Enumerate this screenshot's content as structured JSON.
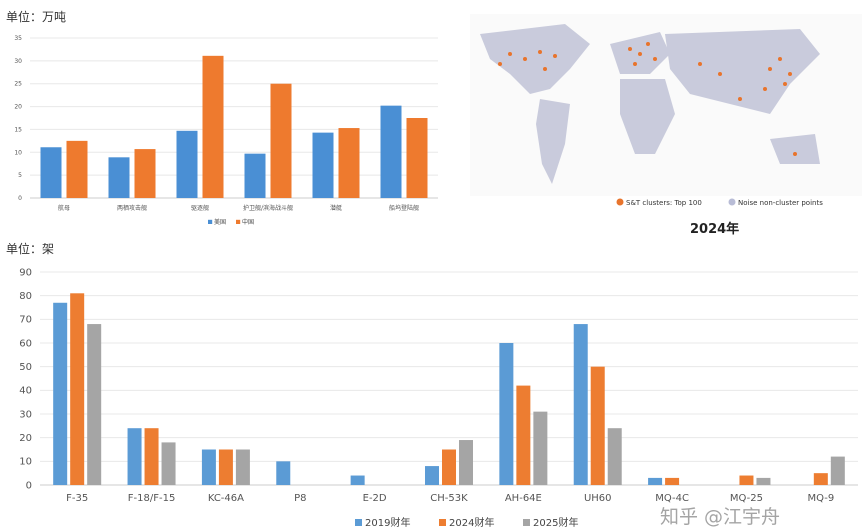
{
  "top_unit": "单位：万吨",
  "bottom_unit": "单位：架",
  "map": {
    "legend": [
      "S&T clusters: Top 100",
      "Noise non-cluster points"
    ],
    "caption": "2024年",
    "colors": {
      "cluster": "#e8742c",
      "noise": "#b8bcd6"
    }
  },
  "watermark": "知乎 @江宇舟",
  "chart_data": [
    {
      "type": "bar",
      "title": "",
      "ylabel": "万吨",
      "ylim": [
        0,
        35
      ],
      "yticks": [
        0,
        5,
        10,
        15,
        20,
        25,
        30,
        35
      ],
      "categories": [
        "航母",
        "两栖攻击舰",
        "驱逐舰",
        "护卫舰/滨海战斗舰",
        "潜艇",
        "船坞登陆舰"
      ],
      "series": [
        {
          "name": "美国",
          "color": "#4a8fd4",
          "values": [
            11.1,
            8.9,
            14.7,
            9.7,
            14.3,
            20.2
          ]
        },
        {
          "name": "中国",
          "color": "#ee7a2e",
          "values": [
            12.5,
            10.7,
            31.1,
            25.0,
            15.3,
            17.5
          ]
        }
      ],
      "legend": "bottom",
      "grid": true
    },
    {
      "type": "bar",
      "title": "",
      "ylabel": "架",
      "ylim": [
        0,
        90
      ],
      "yticks": [
        0,
        10,
        20,
        30,
        40,
        50,
        60,
        70,
        80,
        90
      ],
      "categories": [
        "F-35",
        "F-18/F-15",
        "KC-46A",
        "P8",
        "E-2D",
        "CH-53K",
        "AH-64E",
        "UH60",
        "MQ-4C",
        "MQ-25",
        "MQ-9"
      ],
      "series": [
        {
          "name": "2019财年",
          "color": "#5b9bd5",
          "values": [
            77,
            24,
            15,
            10,
            4,
            8,
            60,
            68,
            3,
            0,
            0
          ]
        },
        {
          "name": "2024财年",
          "color": "#ed7d31",
          "values": [
            81,
            24,
            15,
            0,
            0,
            15,
            42,
            50,
            3,
            4,
            5
          ]
        },
        {
          "name": "2025财年",
          "color": "#a5a5a5",
          "values": [
            68,
            18,
            15,
            0,
            0,
            19,
            31,
            24,
            0,
            3,
            12
          ]
        }
      ],
      "legend": "bottom",
      "grid": true
    }
  ]
}
